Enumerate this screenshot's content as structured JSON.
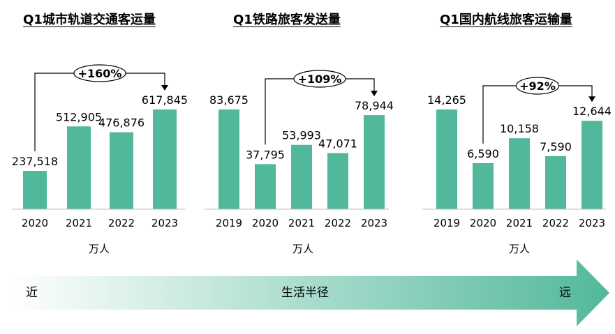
{
  "colors": {
    "bar": "#52b89b",
    "axis": "#bfbfbf",
    "text": "#000000",
    "gradient_start": "#ffffff",
    "gradient_end": "#52b89b"
  },
  "chart_data": [
    {
      "type": "bar",
      "title": "Q1城市轨道交通客运量",
      "categories": [
        "2020",
        "2021",
        "2022",
        "2023"
      ],
      "values": [
        237518,
        512905,
        476876,
        617845
      ],
      "value_labels": [
        "237,518",
        "512,905",
        "476,876",
        "617,845"
      ],
      "unit": "万人",
      "annotation": {
        "text": "+160%",
        "from": "2020",
        "to": "2023"
      },
      "ylim": [
        0,
        617845
      ]
    },
    {
      "type": "bar",
      "title": "Q1铁路旅客发送量",
      "categories": [
        "2019",
        "2020",
        "2021",
        "2022",
        "2023"
      ],
      "values": [
        83675,
        37795,
        53993,
        47071,
        78944
      ],
      "value_labels": [
        "83,675",
        "37,795",
        "53,993",
        "47,071",
        "78,944"
      ],
      "unit": "万人",
      "annotation": {
        "text": "+109%",
        "from": "2020",
        "to": "2023"
      },
      "ylim": [
        0,
        83675
      ]
    },
    {
      "type": "bar",
      "title": "Q1国内航线旅客运输量",
      "categories": [
        "2019",
        "2020",
        "2021",
        "2022",
        "2023"
      ],
      "values": [
        14265,
        6590,
        10158,
        7590,
        12644
      ],
      "value_labels": [
        "14,265",
        "6,590",
        "10,158",
        "7,590",
        "12,644"
      ],
      "unit": "万人",
      "annotation": {
        "text": "+92%",
        "from": "2020",
        "to": "2023"
      },
      "ylim": [
        0,
        14265
      ]
    }
  ],
  "bottom_arrow": {
    "left_label": "近",
    "center_label": "生活半径",
    "right_label": "远"
  }
}
